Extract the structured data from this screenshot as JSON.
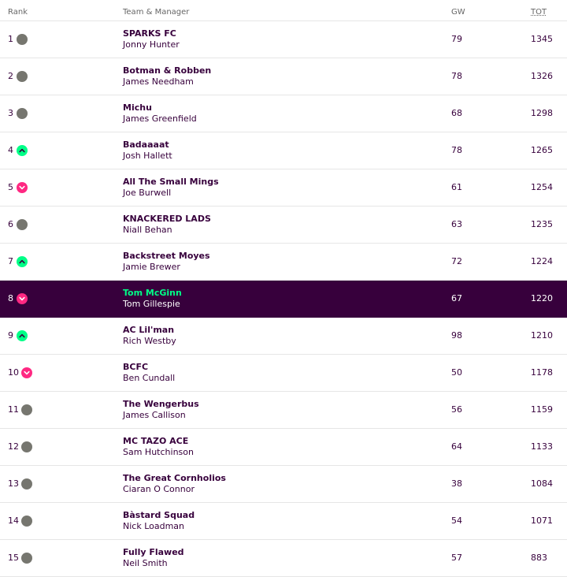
{
  "columns": {
    "rank": "Rank",
    "team_manager": "Team & Manager",
    "gw": "GW",
    "tot": "TOT"
  },
  "colors": {
    "purple": "#37003c",
    "up": "#00ff87",
    "down": "#ff2882",
    "same": "#76766f",
    "highlight_name": "#00ff87"
  },
  "rows": [
    {
      "rank": "1",
      "movement": "same",
      "team": "SPARKS FC",
      "manager": "Jonny Hunter",
      "gw": "79",
      "tot": "1345"
    },
    {
      "rank": "2",
      "movement": "same",
      "team": "Botman & Robben",
      "manager": "James Needham",
      "gw": "78",
      "tot": "1326"
    },
    {
      "rank": "3",
      "movement": "same",
      "team": "Michu",
      "manager": "James Greenfield",
      "gw": "68",
      "tot": "1298"
    },
    {
      "rank": "4",
      "movement": "up",
      "team": "Badaaaat",
      "manager": "Josh Hallett",
      "gw": "78",
      "tot": "1265"
    },
    {
      "rank": "5",
      "movement": "down",
      "team": "All The Small Mings",
      "manager": "Joe Burwell",
      "gw": "61",
      "tot": "1254"
    },
    {
      "rank": "6",
      "movement": "same",
      "team": "KNACKERED LADS",
      "manager": "Niall Behan",
      "gw": "63",
      "tot": "1235"
    },
    {
      "rank": "7",
      "movement": "up",
      "team": "Backstreet Moyes",
      "manager": "Jamie Brewer",
      "gw": "72",
      "tot": "1224"
    },
    {
      "rank": "8",
      "movement": "down",
      "team": "Tom McGinn",
      "manager": "Tom Gillespie",
      "gw": "67",
      "tot": "1220",
      "highlight": true
    },
    {
      "rank": "9",
      "movement": "up",
      "team": "AC Lil'man",
      "manager": "Rich Westby",
      "gw": "98",
      "tot": "1210"
    },
    {
      "rank": "10",
      "movement": "down",
      "team": "BCFC",
      "manager": "Ben Cundall",
      "gw": "50",
      "tot": "1178"
    },
    {
      "rank": "11",
      "movement": "same",
      "team": "The Wengerbus",
      "manager": "James Callison",
      "gw": "56",
      "tot": "1159"
    },
    {
      "rank": "12",
      "movement": "same",
      "team": "MC TAZO ACE",
      "manager": "Sam Hutchinson",
      "gw": "64",
      "tot": "1133"
    },
    {
      "rank": "13",
      "movement": "same",
      "team": "The Great Cornholios",
      "manager": "Ciaran O Connor",
      "gw": "38",
      "tot": "1084"
    },
    {
      "rank": "14",
      "movement": "same",
      "team": "Bàstard Squad",
      "manager": "Nick Loadman",
      "gw": "54",
      "tot": "1071"
    },
    {
      "rank": "15",
      "movement": "same",
      "team": "Fully Flawed",
      "manager": "Neil Smith",
      "gw": "57",
      "tot": "883"
    }
  ]
}
